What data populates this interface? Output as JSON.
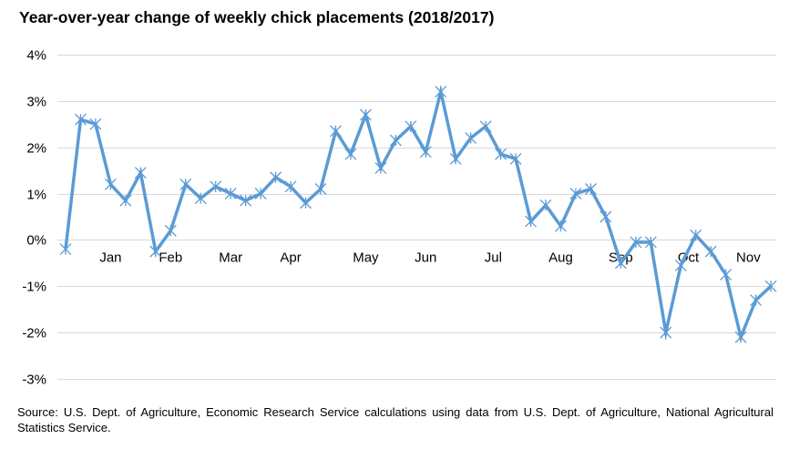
{
  "chart_data": {
    "type": "line",
    "title": "Year-over-year change of weekly chick placements (2018/2017)",
    "xlabel": "",
    "ylabel": "",
    "ylim": [
      -3,
      4
    ],
    "y_ticks": [
      4,
      3,
      2,
      1,
      0,
      -1,
      -2,
      -3
    ],
    "y_tick_format": "percent",
    "grid": true,
    "legend": "none",
    "line_color": "#5b9bd5",
    "marker": "asterisk",
    "months": [
      {
        "label": "Jan",
        "week": 3
      },
      {
        "label": "Feb",
        "week": 7
      },
      {
        "label": "Mar",
        "week": 11
      },
      {
        "label": "Apr",
        "week": 15
      },
      {
        "label": "May",
        "week": 20
      },
      {
        "label": "Jun",
        "week": 24
      },
      {
        "label": "Jul",
        "week": 28.5
      },
      {
        "label": "Aug",
        "week": 33
      },
      {
        "label": "Sep",
        "week": 37
      },
      {
        "label": "Oct",
        "week": 41.5
      },
      {
        "label": "Nov",
        "week": 45.5
      }
    ],
    "series": [
      {
        "values": [
          -0.2,
          2.6,
          2.5,
          1.2,
          0.85,
          1.45,
          -0.25,
          0.2,
          1.2,
          0.9,
          1.15,
          1.0,
          0.85,
          1.0,
          1.35,
          1.15,
          0.8,
          1.1,
          2.35,
          1.85,
          2.7,
          1.55,
          2.15,
          2.45,
          1.9,
          3.2,
          1.75,
          2.2,
          2.45,
          1.85,
          1.75,
          0.4,
          0.75,
          0.3,
          1.0,
          1.1,
          0.5,
          -0.5,
          -0.05,
          -0.05,
          -2.0,
          -0.55,
          0.1,
          -0.25,
          -0.75,
          -2.1,
          -1.3,
          -1.0
        ]
      }
    ]
  },
  "source": "Source: U.S. Dept. of Agriculture, Economic Research Service calculations using data from U.S. Dept. of Agriculture, National Agricultural Statistics Service."
}
